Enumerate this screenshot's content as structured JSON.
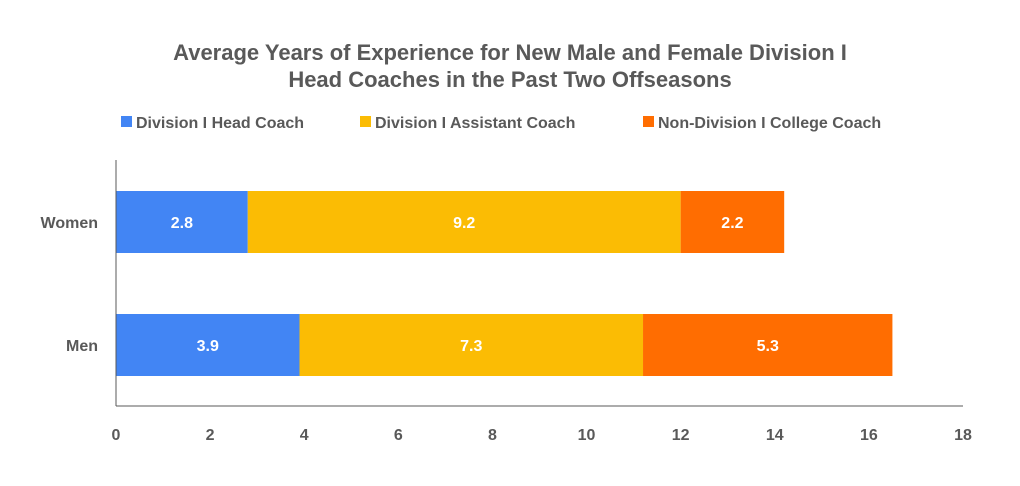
{
  "chart_data": {
    "type": "bar",
    "orientation": "horizontal",
    "stacked": true,
    "title_lines": [
      "Average Years of Experience for New Male and Female Division I",
      "Head Coaches in the Past Two Offseasons"
    ],
    "categories": [
      "Women",
      "Men"
    ],
    "series": [
      {
        "name": "Division I Head Coach",
        "color": "#4285f4",
        "values": [
          2.8,
          3.9
        ]
      },
      {
        "name": "Division I Assistant Coach",
        "color": "#fbbc04",
        "values": [
          9.2,
          7.3
        ]
      },
      {
        "name": "Non-Division I College Coach",
        "color": "#ff6d01",
        "values": [
          2.2,
          5.3
        ]
      }
    ],
    "xlim": [
      0,
      18
    ],
    "x_ticks": [
      0,
      2,
      4,
      6,
      8,
      10,
      12,
      14,
      16,
      18
    ],
    "legend_position": "top",
    "grid": false,
    "xlabel": "",
    "ylabel": ""
  }
}
